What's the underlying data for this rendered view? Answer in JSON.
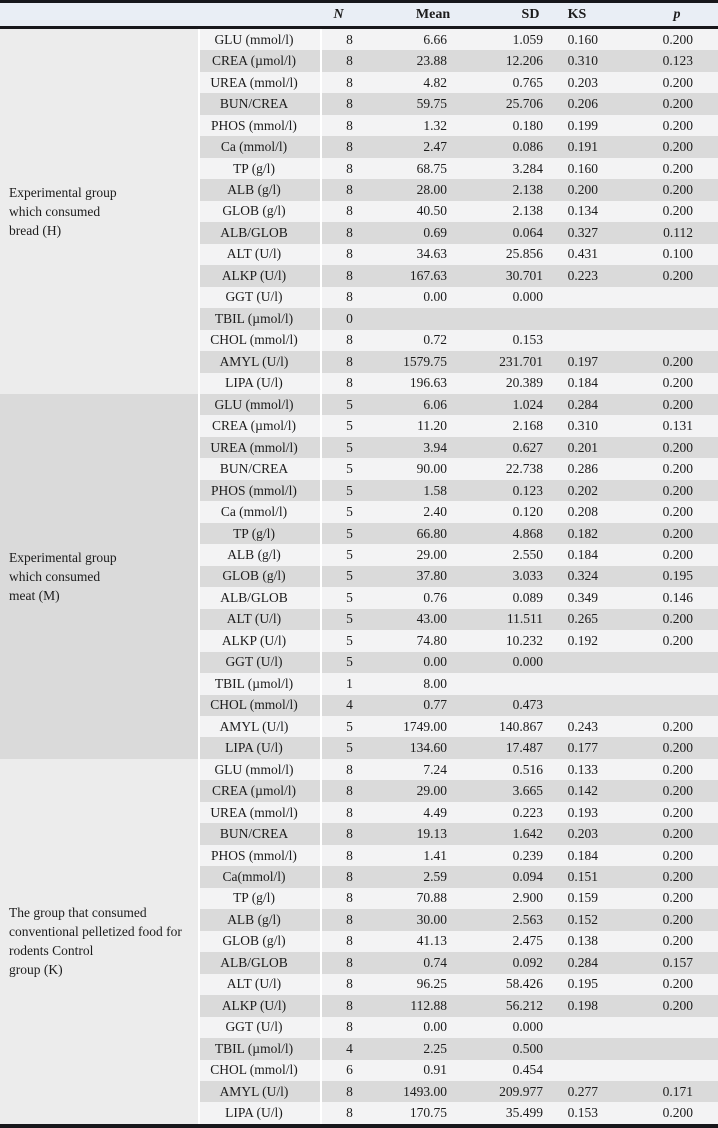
{
  "colors": {
    "header_bg": "#e9eef5",
    "row_light": "#f3f3f4",
    "row_gray": "#dadada",
    "label_light": "#ececec",
    "label_gray": "#dadada",
    "border": "#17171b",
    "text": "#1c1c1c"
  },
  "table": {
    "headers": {
      "group": "",
      "parameter": "",
      "n": "N",
      "mean": "Mean",
      "sd": "SD",
      "ks": "KS",
      "p": "p"
    },
    "groups": [
      {
        "label": "Experimental group\nwhich consumed\nbread (H)",
        "shade": "light",
        "rows": [
          [
            "GLU (mmol/l)",
            "8",
            "6.66",
            "1.059",
            "0.160",
            "0.200"
          ],
          [
            "CREA (µmol/l)",
            "8",
            "23.88",
            "12.206",
            "0.310",
            "0.123"
          ],
          [
            "UREA (mmol/l)",
            "8",
            "4.82",
            "0.765",
            "0.203",
            "0.200"
          ],
          [
            "BUN/CREA",
            "8",
            "59.75",
            "25.706",
            "0.206",
            "0.200"
          ],
          [
            "PHOS (mmol/l)",
            "8",
            "1.32",
            "0.180",
            "0.199",
            "0.200"
          ],
          [
            "Ca (mmol/l)",
            "8",
            "2.47",
            "0.086",
            "0.191",
            "0.200"
          ],
          [
            "TP (g/l)",
            "8",
            "68.75",
            "3.284",
            "0.160",
            "0.200"
          ],
          [
            "ALB (g/l)",
            "8",
            "28.00",
            "2.138",
            "0.200",
            "0.200"
          ],
          [
            "GLOB (g/l)",
            "8",
            "40.50",
            "2.138",
            "0.134",
            "0.200"
          ],
          [
            "ALB/GLOB",
            "8",
            "0.69",
            "0.064",
            "0.327",
            "0.112"
          ],
          [
            "ALT (U/l)",
            "8",
            "34.63",
            "25.856",
            "0.431",
            "0.100"
          ],
          [
            "ALKP (U/l)",
            "8",
            "167.63",
            "30.701",
            "0.223",
            "0.200"
          ],
          [
            "GGT (U/l)",
            "8",
            "0.00",
            "0.000",
            "",
            ""
          ],
          [
            "TBIL (µmol/l)",
            "0",
            "",
            "",
            "",
            ""
          ],
          [
            "CHOL (mmol/l)",
            "8",
            "0.72",
            "0.153",
            "",
            ""
          ],
          [
            "AMYL (U/l)",
            "8",
            "1579.75",
            "231.701",
            "0.197",
            "0.200"
          ],
          [
            "LIPA (U/l)",
            "8",
            "196.63",
            "20.389",
            "0.184",
            "0.200"
          ]
        ]
      },
      {
        "label": "Experimental group\nwhich consumed\nmeat (M)",
        "shade": "gray",
        "rows": [
          [
            "GLU (mmol/l)",
            "5",
            "6.06",
            "1.024",
            "0.284",
            "0.200"
          ],
          [
            "CREA (µmol/l)",
            "5",
            "11.20",
            "2.168",
            "0.310",
            "0.131"
          ],
          [
            "UREA (mmol/l)",
            "5",
            "3.94",
            "0.627",
            "0.201",
            "0.200"
          ],
          [
            "BUN/CREA",
            "5",
            "90.00",
            "22.738",
            "0.286",
            "0.200"
          ],
          [
            "PHOS (mmol/l)",
            "5",
            "1.58",
            "0.123",
            "0.202",
            "0.200"
          ],
          [
            "Ca (mmol/l)",
            "5",
            "2.40",
            "0.120",
            "0.208",
            "0.200"
          ],
          [
            "TP (g/l)",
            "5",
            "66.80",
            "4.868",
            "0.182",
            "0.200"
          ],
          [
            "ALB (g/l)",
            "5",
            "29.00",
            "2.550",
            "0.184",
            "0.200"
          ],
          [
            "GLOB (g/l)",
            "5",
            "37.80",
            "3.033",
            "0.324",
            "0.195"
          ],
          [
            "ALB/GLOB",
            "5",
            "0.76",
            "0.089",
            "0.349",
            "0.146"
          ],
          [
            "ALT (U/l)",
            "5",
            "43.00",
            "11.511",
            "0.265",
            "0.200"
          ],
          [
            "ALKP (U/l)",
            "5",
            "74.80",
            "10.232",
            "0.192",
            "0.200"
          ],
          [
            "GGT (U/l)",
            "5",
            "0.00",
            "0.000",
            "",
            ""
          ],
          [
            "TBIL (µmol/l)",
            "1",
            "8.00",
            "",
            "",
            ""
          ],
          [
            "CHOL (mmol/l)",
            "4",
            "0.77",
            "0.473",
            "",
            ""
          ],
          [
            "AMYL (U/l)",
            "5",
            "1749.00",
            "140.867",
            "0.243",
            "0.200"
          ],
          [
            "LIPA (U/l)",
            "5",
            "134.60",
            "17.487",
            "0.177",
            "0.200"
          ]
        ]
      },
      {
        "label": "The group that consumed\nconventional pelletized food for\nrodents Control\ngroup (K)",
        "shade": "light",
        "rows": [
          [
            "GLU (mmol/l)",
            "8",
            "7.24",
            "0.516",
            "0.133",
            "0.200"
          ],
          [
            "CREA (µmol/l)",
            "8",
            "29.00",
            "3.665",
            "0.142",
            "0.200"
          ],
          [
            "UREA (mmol/l)",
            "8",
            "4.49",
            "0.223",
            "0.193",
            "0.200"
          ],
          [
            "BUN/CREA",
            "8",
            "19.13",
            "1.642",
            "0.203",
            "0.200"
          ],
          [
            "PHOS (mmol/l)",
            "8",
            "1.41",
            "0.239",
            "0.184",
            "0.200"
          ],
          [
            "Ca(mmol/l)",
            "8",
            "2.59",
            "0.094",
            "0.151",
            "0.200"
          ],
          [
            "TP (g/l)",
            "8",
            "70.88",
            "2.900",
            "0.159",
            "0.200"
          ],
          [
            "ALB (g/l)",
            "8",
            "30.00",
            "2.563",
            "0.152",
            "0.200"
          ],
          [
            "GLOB (g/l)",
            "8",
            "41.13",
            "2.475",
            "0.138",
            "0.200"
          ],
          [
            "ALB/GLOB",
            "8",
            "0.74",
            "0.092",
            "0.284",
            "0.157"
          ],
          [
            "ALT (U/l)",
            "8",
            "96.25",
            "58.426",
            "0.195",
            "0.200"
          ],
          [
            "ALKP (U/l)",
            "8",
            "112.88",
            "56.212",
            "0.198",
            "0.200"
          ],
          [
            "GGT (U/l)",
            "8",
            "0.00",
            "0.000",
            "",
            ""
          ],
          [
            "TBIL (µmol/l)",
            "4",
            "2.25",
            "0.500",
            "",
            ""
          ],
          [
            "CHOL (mmol/l)",
            "6",
            "0.91",
            "0.454",
            "",
            ""
          ],
          [
            "AMYL (U/l)",
            "8",
            "1493.00",
            "209.977",
            "0.277",
            "0.171"
          ],
          [
            "LIPA (U/l)",
            "8",
            "170.75",
            "35.499",
            "0.153",
            "0.200"
          ]
        ]
      }
    ]
  }
}
